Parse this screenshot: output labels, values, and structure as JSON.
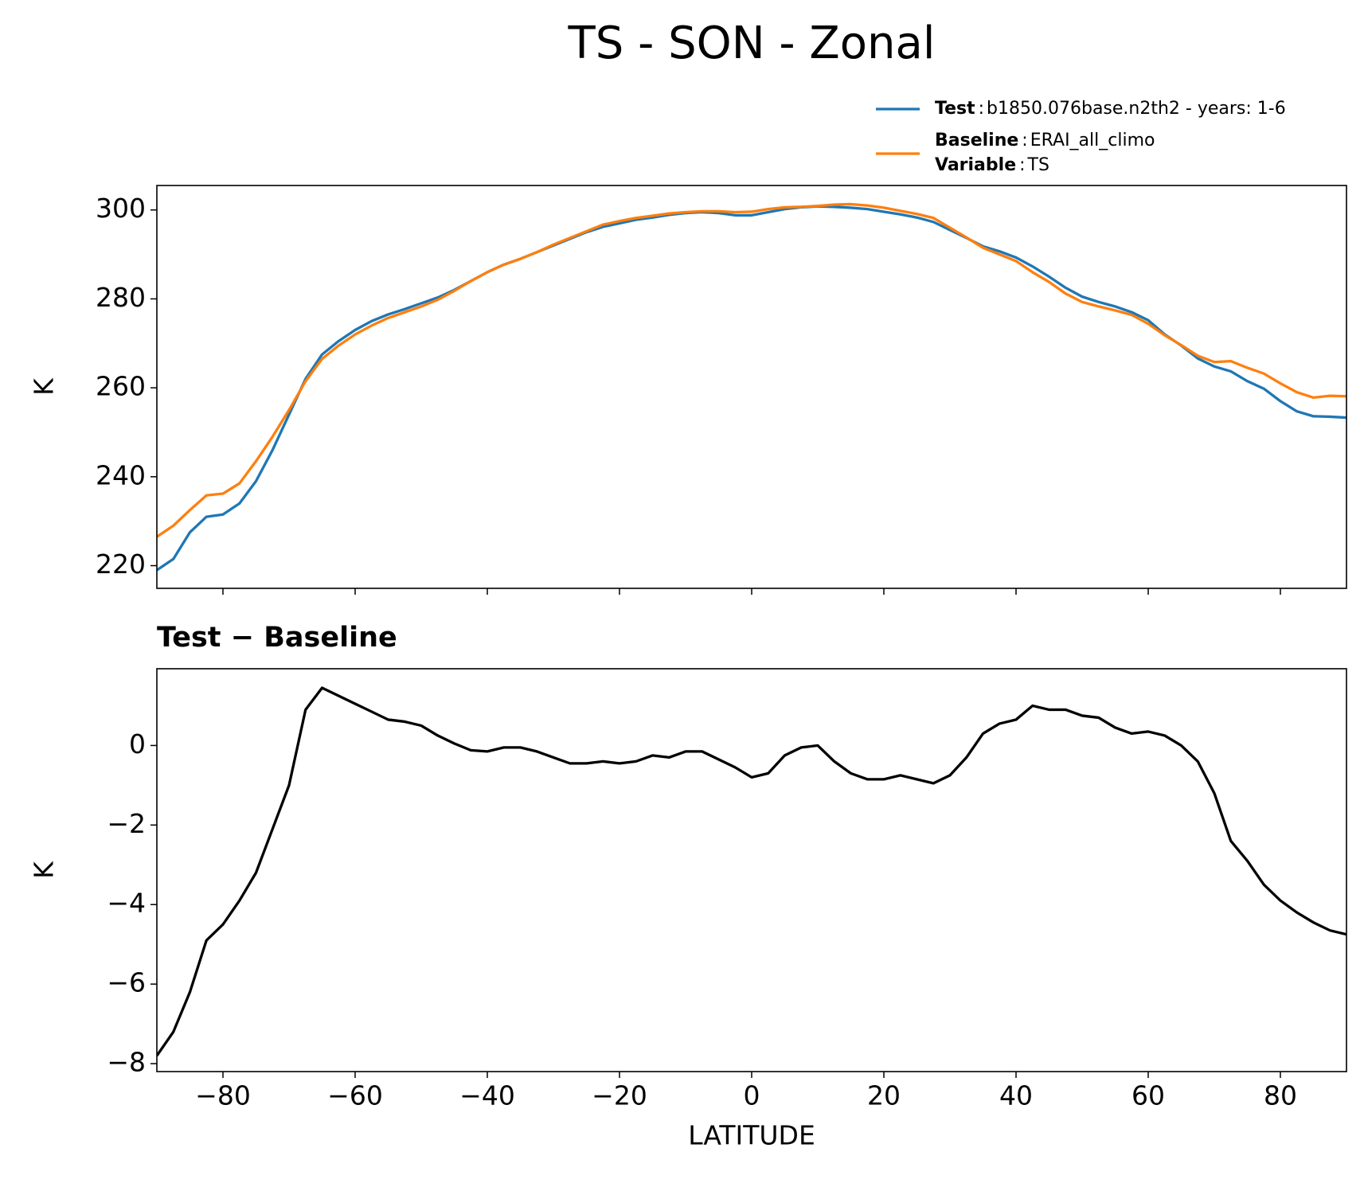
{
  "chart_data": [
    {
      "type": "line",
      "title": "TS - SON - Zonal",
      "ylabel": "K",
      "legend_separator": ":",
      "variable_label": "Variable",
      "variable": "TS",
      "x": [
        -90,
        -87.5,
        -85,
        -82.5,
        -80,
        -77.5,
        -75,
        -72.5,
        -70,
        -67.5,
        -65,
        -62.5,
        -60,
        -57.5,
        -55,
        -52.5,
        -50,
        -47.5,
        -45,
        -42.5,
        -40,
        -37.5,
        -35,
        -32.5,
        -30,
        -27.5,
        -25,
        -22.5,
        -20,
        -17.5,
        -15,
        -12.5,
        -10,
        -7.5,
        -5,
        -2.5,
        0,
        2.5,
        5,
        7.5,
        10,
        12.5,
        15,
        17.5,
        20,
        22.5,
        25,
        27.5,
        30,
        32.5,
        35,
        37.5,
        40,
        42.5,
        45,
        47.5,
        50,
        52.5,
        55,
        57.5,
        60,
        62.5,
        65,
        67.5,
        70,
        72.5,
        75,
        77.5,
        80,
        82.5,
        85,
        87.5,
        90
      ],
      "series": [
        {
          "name": "Test",
          "description": "b1850.076base.n2th2 - years: 1-6",
          "color": "#1f77b4",
          "values": [
            219,
            221.5,
            227.5,
            231,
            231.5,
            234,
            239,
            246,
            254,
            262,
            267.5,
            270.5,
            273,
            275,
            276.5,
            277.7,
            279,
            280.3,
            282,
            284,
            286,
            287.7,
            289,
            290.5,
            292,
            293.5,
            295,
            296.2,
            297,
            297.8,
            298.3,
            298.9,
            299.3,
            299.5,
            299.3,
            298.8,
            298.8,
            299.5,
            300.2,
            300.6,
            300.8,
            300.7,
            300.5,
            300.2,
            299.6,
            299,
            298.3,
            297.3,
            295.5,
            293.7,
            291.8,
            290.7,
            289.3,
            287.3,
            285,
            282.5,
            280.5,
            279.3,
            278.3,
            277,
            275.2,
            272,
            269.5,
            266.6,
            264.8,
            263.7,
            261.5,
            259.8,
            257,
            254.7,
            253.6,
            253.5,
            253.3
          ]
        },
        {
          "name": "Baseline",
          "description": "ERAI_all_climo",
          "color": "#ff7f0e",
          "values": [
            226.5,
            229,
            232.5,
            235.8,
            236.2,
            238.5,
            243.5,
            249,
            255,
            261.5,
            266.5,
            269.5,
            272,
            274,
            275.7,
            277,
            278.3,
            279.8,
            281.8,
            284,
            286,
            287.7,
            289,
            290.5,
            292.2,
            293.7,
            295.2,
            296.7,
            297.5,
            298.2,
            298.7,
            299.2,
            299.5,
            299.7,
            299.7,
            299.5,
            299.6,
            300.2,
            300.6,
            300.7,
            300.9,
            301.2,
            301.3,
            301,
            300.5,
            299.8,
            299.1,
            298.2,
            296,
            293.8,
            291.5,
            290,
            288.5,
            286,
            283.8,
            281.2,
            279.3,
            278.3,
            277.4,
            276.4,
            274.4,
            271.8,
            269.6,
            267.2,
            265.8,
            266,
            264.5,
            263.2,
            261,
            259,
            257.8,
            258.2,
            258.1
          ]
        }
      ],
      "xlim": [
        -90,
        90
      ],
      "xticks": [
        -80,
        -60,
        -40,
        -20,
        0,
        20,
        40,
        60,
        80
      ],
      "ylim": [
        214.9,
        305.5
      ],
      "yticks": [
        220,
        240,
        260,
        280,
        300
      ]
    },
    {
      "type": "line",
      "subtitle": "Test − Baseline",
      "ylabel": "K",
      "xlabel": "LATITUDE",
      "x": [
        -90,
        -87.5,
        -85,
        -82.5,
        -80,
        -77.5,
        -75,
        -72.5,
        -70,
        -67.5,
        -65,
        -62.5,
        -60,
        -57.5,
        -55,
        -52.5,
        -50,
        -47.5,
        -45,
        -42.5,
        -40,
        -37.5,
        -35,
        -32.5,
        -30,
        -27.5,
        -25,
        -22.5,
        -20,
        -17.5,
        -15,
        -12.5,
        -10,
        -7.5,
        -5,
        -2.5,
        0,
        2.5,
        5,
        7.5,
        10,
        12.5,
        15,
        17.5,
        20,
        22.5,
        25,
        27.5,
        30,
        32.5,
        35,
        37.5,
        40,
        42.5,
        45,
        47.5,
        50,
        52.5,
        55,
        57.5,
        60,
        62.5,
        65,
        67.5,
        70,
        72.5,
        75,
        77.5,
        80,
        82.5,
        85,
        87.5,
        90
      ],
      "series": [
        {
          "color": "#000000",
          "values": [
            -7.8,
            -7.2,
            -6.2,
            -4.9,
            -4.5,
            -3.9,
            -3.2,
            -2.1,
            -1.0,
            0.9,
            1.45,
            1.25,
            1.05,
            0.85,
            0.65,
            0.6,
            0.5,
            0.25,
            0.05,
            -0.12,
            -0.15,
            -0.05,
            -0.05,
            -0.15,
            -0.3,
            -0.45,
            -0.45,
            -0.4,
            -0.45,
            -0.4,
            -0.25,
            -0.3,
            -0.15,
            -0.15,
            -0.35,
            -0.55,
            -0.8,
            -0.7,
            -0.25,
            -0.05,
            0.0,
            -0.4,
            -0.7,
            -0.85,
            -0.85,
            -0.75,
            -0.85,
            -0.95,
            -0.75,
            -0.3,
            0.3,
            0.55,
            0.65,
            1.0,
            0.9,
            0.9,
            0.75,
            0.7,
            0.45,
            0.3,
            0.35,
            0.25,
            0.0,
            -0.4,
            -1.2,
            -2.4,
            -2.9,
            -3.5,
            -3.9,
            -4.2,
            -4.45,
            -4.65,
            -4.75
          ]
        }
      ],
      "xlim": [
        -90,
        90
      ],
      "xticks": [
        {
          "value": -80,
          "label": "−80"
        },
        {
          "value": -60,
          "label": "−60"
        },
        {
          "value": -40,
          "label": "−40"
        },
        {
          "value": -20,
          "label": "−20"
        },
        0,
        20,
        40,
        60,
        80
      ],
      "ylim": [
        -8.2,
        1.93
      ],
      "yticks": [
        {
          "value": -8,
          "label": "−8"
        },
        {
          "value": -6,
          "label": "−6"
        },
        {
          "value": -4,
          "label": "−4"
        },
        {
          "value": -2,
          "label": "−2"
        },
        0
      ]
    }
  ]
}
